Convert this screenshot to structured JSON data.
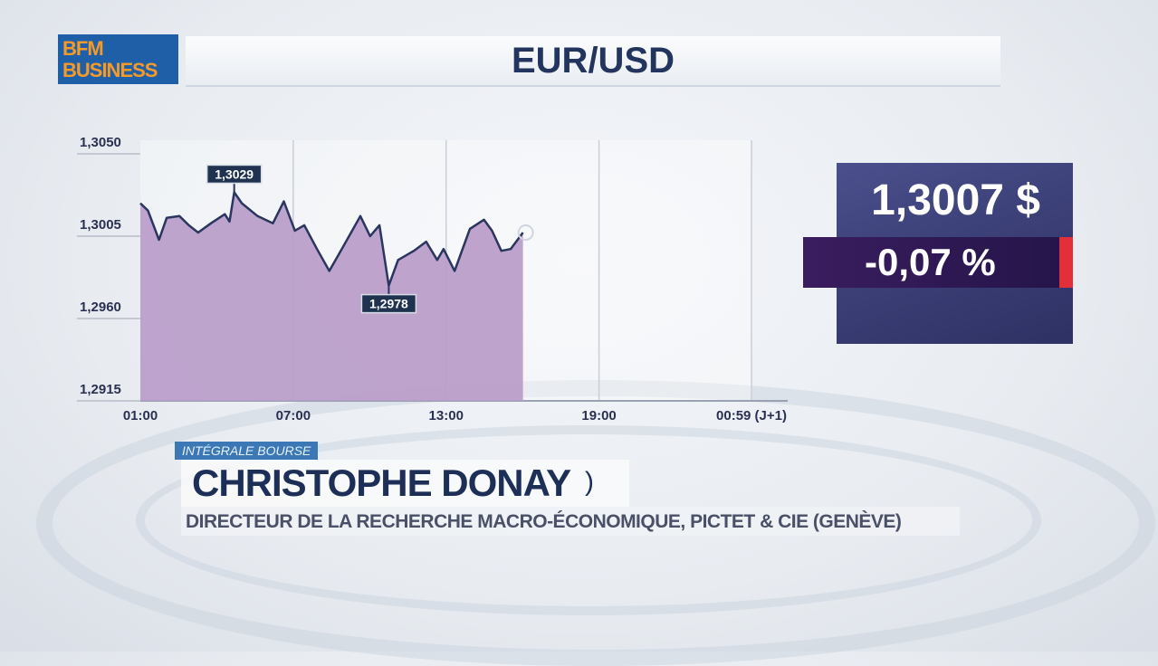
{
  "logo": {
    "line1": "BFM",
    "line2": "BUSINESS"
  },
  "header": {
    "title": "EUR/USD"
  },
  "quote": {
    "price": "1,3007 $",
    "change": "-0,07 %",
    "change_color": "#e2303a"
  },
  "lower_third": {
    "tag": "INTÉGRALE BOURSE",
    "name": "CHRISTOPHE DONAY",
    "name_suffix": ")",
    "title": "DIRECTEUR DE LA RECHERCHE MACRO-ÉCONOMIQUE, PICTET & CIE (GENÈVE)"
  },
  "chart_data": {
    "type": "area",
    "title": "EUR/USD",
    "xlabel": "",
    "ylabel": "",
    "ylim": [
      1.2915,
      1.305
    ],
    "y_ticks": [
      "1,3050",
      "1,3005",
      "1,2960",
      "1,2915"
    ],
    "y_tick_values": [
      1.305,
      1.3005,
      1.296,
      1.2915
    ],
    "x_ticks": [
      "01:00",
      "07:00",
      "13:00",
      "19:00",
      "00:59 (J+1)"
    ],
    "x_tick_hours": [
      1,
      7,
      13,
      19,
      24.983
    ],
    "grid": "vertical",
    "fill_color": "#b89cc9",
    "line_color": "#2a3560",
    "annotations": [
      {
        "label": "1,3029",
        "x": "04:41",
        "y": 1.3029,
        "type": "high"
      },
      {
        "label": "1,2978",
        "x": "10:45",
        "y": 1.2978,
        "type": "low"
      }
    ],
    "x": [
      "01:00",
      "01:18",
      "01:44",
      "02:02",
      "02:32",
      "02:54",
      "03:16",
      "03:46",
      "04:19",
      "04:30",
      "04:41",
      "04:59",
      "05:36",
      "06:12",
      "06:38",
      "07:04",
      "07:26",
      "07:56",
      "08:25",
      "08:47",
      "09:09",
      "09:38",
      "10:01",
      "10:23",
      "10:45",
      "11:07",
      "11:44",
      "12:13",
      "12:39",
      "12:54",
      "13:20",
      "13:56",
      "14:29",
      "14:48",
      "15:10",
      "15:32",
      "16:01"
    ],
    "y": [
      1.3023,
      1.3019,
      1.3003,
      1.3015,
      1.3016,
      1.3011,
      1.3007,
      1.3012,
      1.3017,
      1.3013,
      1.3029,
      1.3023,
      1.3016,
      1.3012,
      1.3024,
      1.3008,
      1.3011,
      1.2998,
      1.2986,
      1.2995,
      1.3004,
      1.3016,
      1.3005,
      1.3011,
      1.2978,
      1.2992,
      1.2997,
      1.3002,
      1.2992,
      1.2998,
      1.2986,
      1.3009,
      1.3014,
      1.3008,
      1.2997,
      1.2998,
      1.3007
    ]
  }
}
